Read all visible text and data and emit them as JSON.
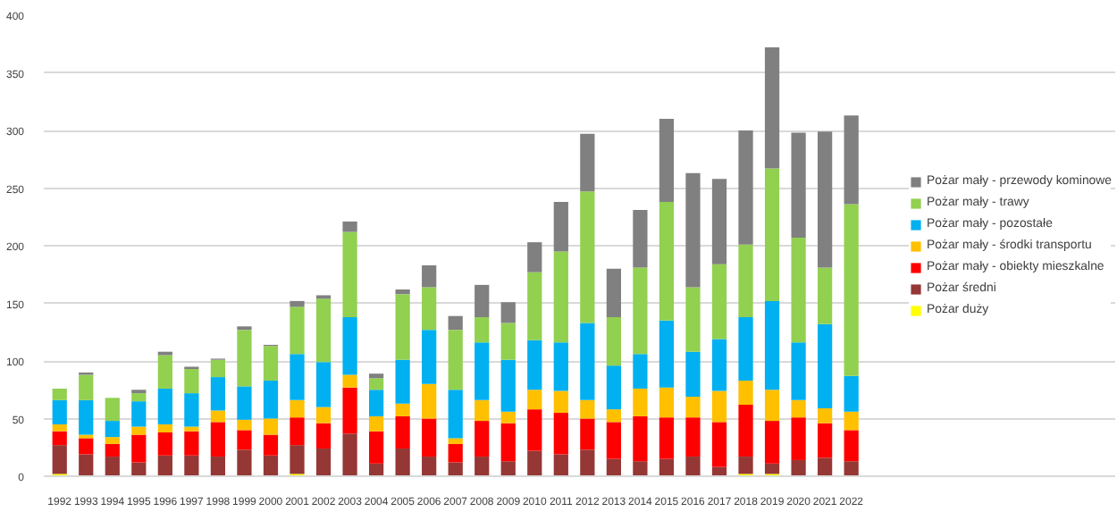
{
  "chart_data": {
    "type": "bar",
    "stacked": true,
    "categories": [
      "1992",
      "1993",
      "1994",
      "1995",
      "1996",
      "1997",
      "1998",
      "1999",
      "2000",
      "2001",
      "2002",
      "2003",
      "2004",
      "2005",
      "2006",
      "2007",
      "2008",
      "2009",
      "2010",
      "2011",
      "2012",
      "2013",
      "2014",
      "2015",
      "2016",
      "2017",
      "2018",
      "2019",
      "2020",
      "2021",
      "2022"
    ],
    "series": [
      {
        "name": "Pożar duży",
        "color": "#ffff00",
        "values": [
          2,
          0,
          0,
          0,
          0,
          0,
          0,
          0,
          0,
          2,
          0,
          0,
          0,
          0,
          0,
          0,
          0,
          0,
          0,
          0,
          0,
          0,
          0,
          0,
          0,
          0,
          2,
          2,
          0,
          0,
          0
        ]
      },
      {
        "name": "Pożar średni",
        "color": "#953735",
        "values": [
          25,
          19,
          17,
          12,
          18,
          18,
          17,
          23,
          18,
          25,
          24,
          37,
          11,
          24,
          17,
          12,
          17,
          13,
          22,
          19,
          23,
          15,
          13,
          15,
          17,
          8,
          15,
          9,
          14,
          16,
          13
        ]
      },
      {
        "name": "Pożar mały - obiekty mieszkalne",
        "color": "#ff0000",
        "values": [
          12,
          14,
          11,
          24,
          20,
          21,
          30,
          17,
          18,
          24,
          22,
          40,
          28,
          28,
          33,
          16,
          31,
          33,
          36,
          36,
          27,
          32,
          39,
          36,
          34,
          39,
          45,
          37,
          37,
          30,
          27
        ]
      },
      {
        "name": "Pożar mały - środki transportu",
        "color": "#ffc000",
        "values": [
          6,
          3,
          6,
          7,
          7,
          4,
          10,
          9,
          14,
          15,
          14,
          11,
          13,
          11,
          30,
          5,
          18,
          10,
          17,
          19,
          16,
          11,
          24,
          26,
          18,
          27,
          21,
          27,
          15,
          13,
          16
        ]
      },
      {
        "name": "Pożar mały - pozostałe",
        "color": "#00b0f0",
        "values": [
          21,
          30,
          14,
          22,
          31,
          29,
          29,
          29,
          33,
          40,
          39,
          50,
          23,
          38,
          47,
          42,
          50,
          45,
          43,
          42,
          67,
          38,
          30,
          58,
          39,
          45,
          55,
          77,
          50,
          73,
          31
        ]
      },
      {
        "name": "Pożar mały - trawy",
        "color": "#92d050",
        "values": [
          10,
          22,
          20,
          7,
          29,
          21,
          15,
          49,
          30,
          41,
          55,
          74,
          10,
          57,
          37,
          52,
          22,
          32,
          59,
          79,
          114,
          42,
          75,
          103,
          56,
          65,
          63,
          115,
          91,
          49,
          149
        ]
      },
      {
        "name": "Pożar mały - przewody kominowe",
        "color": "#808080",
        "values": [
          0,
          2,
          0,
          3,
          3,
          2,
          1,
          3,
          1,
          5,
          3,
          9,
          4,
          4,
          19,
          12,
          28,
          18,
          26,
          43,
          50,
          42,
          50,
          72,
          99,
          74,
          99,
          105,
          91,
          118,
          77
        ]
      }
    ],
    "ylim": [
      0,
      400
    ],
    "yticks": [
      0,
      50,
      100,
      150,
      200,
      250,
      300,
      350,
      400
    ],
    "grid": "y",
    "legend": "right"
  }
}
